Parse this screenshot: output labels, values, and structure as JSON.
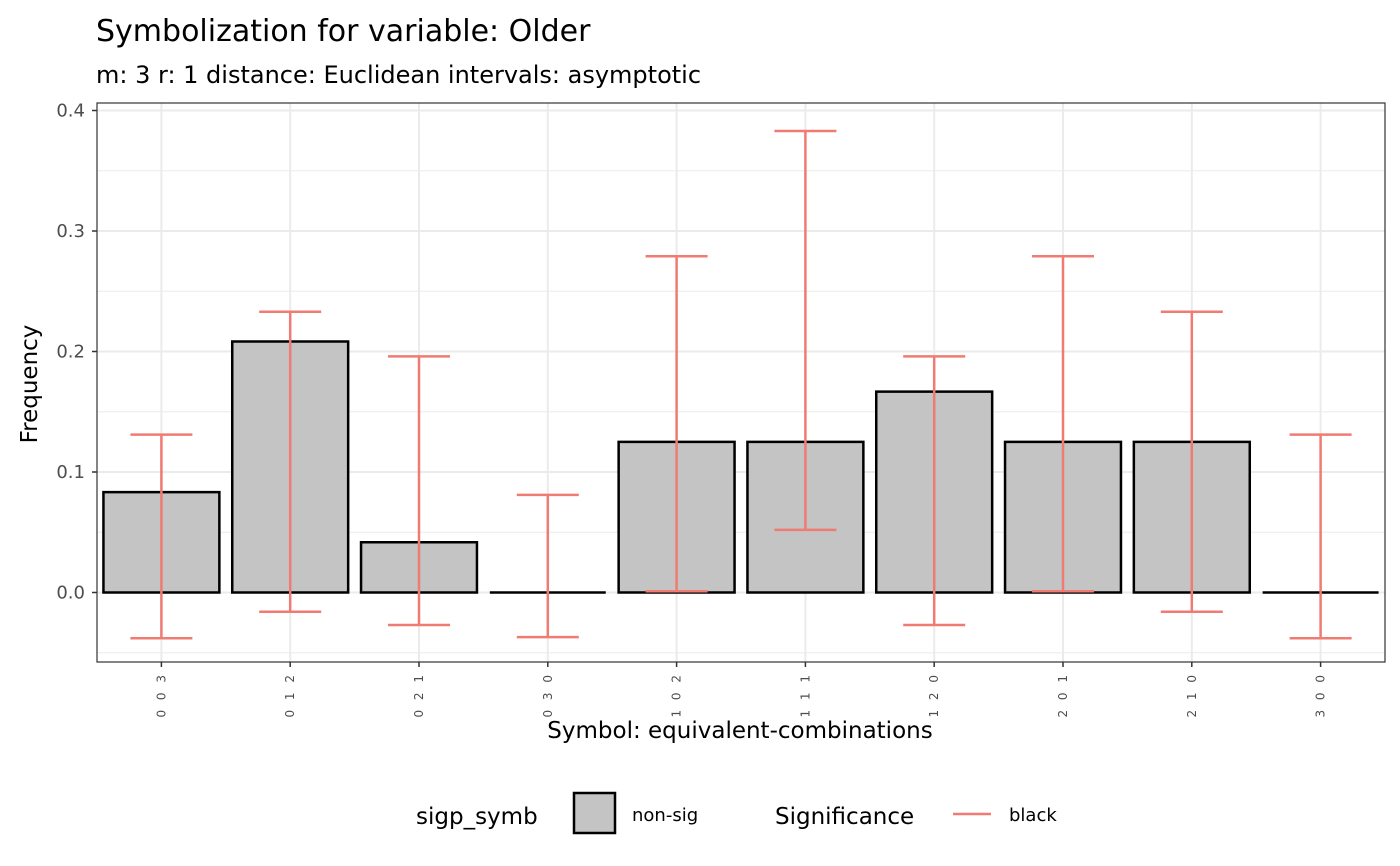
{
  "chart_data": {
    "type": "bar",
    "title": "Symbolization for variable: Older",
    "subtitle": "m: 3  r:  1  distance:  Euclidean  intervals:  asymptotic",
    "xlabel": "Symbol: equivalent-combinations",
    "ylabel": "Frequency",
    "categories": [
      "0 0 3",
      "0 1 2",
      "0 2 1",
      "0 3 0",
      "1 0 2",
      "1 1 1",
      "1 2 0",
      "2 0 1",
      "2 1 0",
      "3 0 0"
    ],
    "values": [
      0.0833,
      0.2083,
      0.0417,
      0.0,
      0.125,
      0.125,
      0.1667,
      0.125,
      0.125,
      0.0
    ],
    "error_low": [
      -0.038,
      -0.016,
      -0.027,
      -0.037,
      0.001,
      0.052,
      -0.027,
      0.001,
      -0.016,
      -0.038
    ],
    "error_high": [
      0.131,
      0.233,
      0.196,
      0.081,
      0.279,
      0.383,
      0.196,
      0.279,
      0.233,
      0.131
    ],
    "ylim": [
      -0.05,
      0.4
    ],
    "yticks": [
      "0.0",
      "0.1",
      "0.2",
      "0.3",
      "0.4"
    ],
    "ytick_values": [
      0.0,
      0.1,
      0.2,
      0.3,
      0.4
    ],
    "grid": true,
    "colors": {
      "bar_fill": "#c4c4c4",
      "bar_stroke": "#000000",
      "errorbar": "#f07b72",
      "grid": "#ebebeb"
    },
    "legend": {
      "position": "bottom",
      "fill_title": "sigp_symb",
      "fill_label": "non-sig",
      "color_title": "Significance",
      "color_label": "black"
    }
  }
}
